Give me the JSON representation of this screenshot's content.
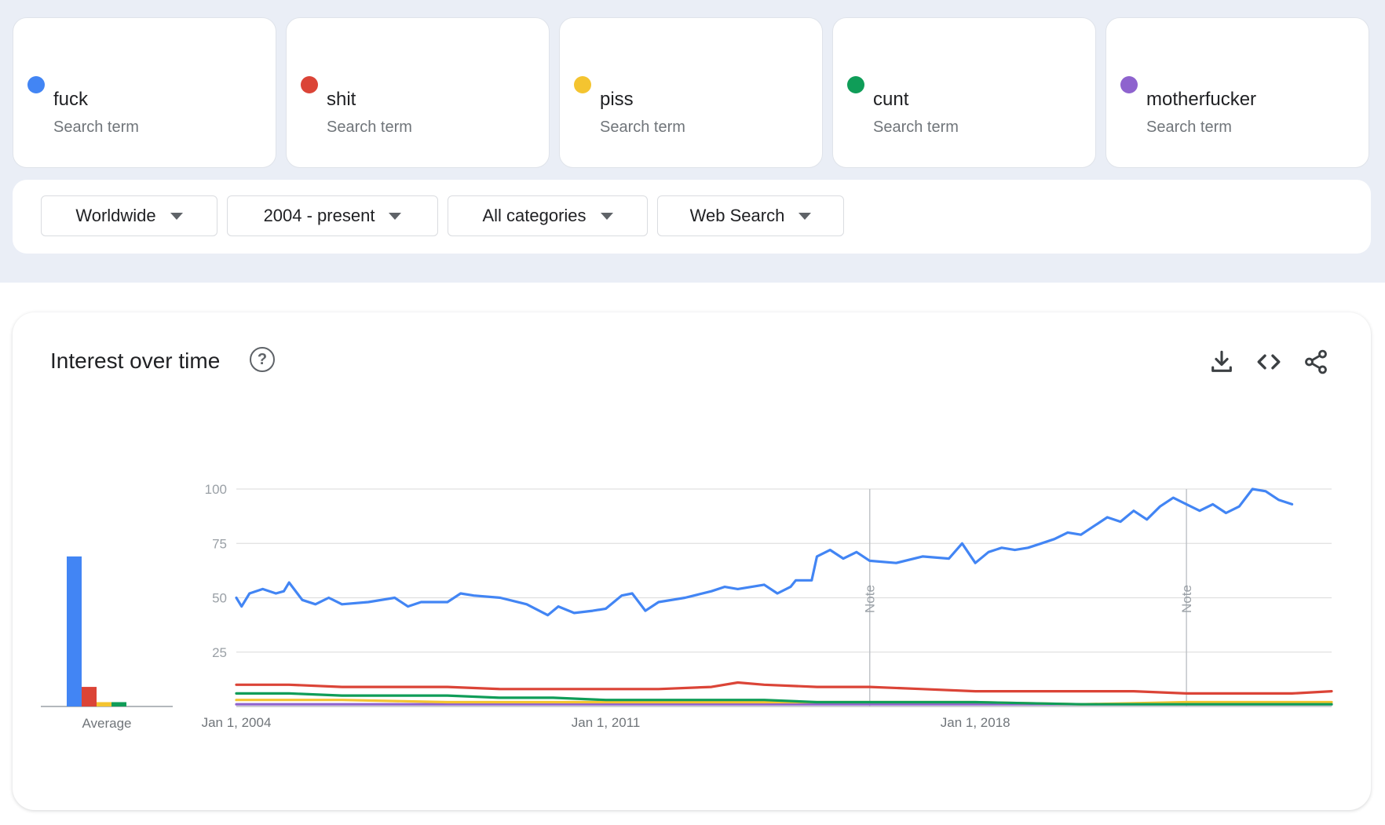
{
  "terms": [
    {
      "name": "fuck",
      "subtitle": "Search term",
      "color": "#4285f4"
    },
    {
      "name": "shit",
      "subtitle": "Search term",
      "color": "#db4437"
    },
    {
      "name": "piss",
      "subtitle": "Search term",
      "color": "#f4c430"
    },
    {
      "name": "cunt",
      "subtitle": "Search term",
      "color": "#0f9d58"
    },
    {
      "name": "motherfucker",
      "subtitle": "Search term",
      "color": "#8e63ce"
    }
  ],
  "filters": {
    "region": "Worldwide",
    "time_range": "2004 - present",
    "category": "All categories",
    "search_type": "Web Search"
  },
  "panel": {
    "title": "Interest over time",
    "help_icon": "question-circle-icon",
    "download_icon": "download-icon",
    "embed_icon": "code-embed-icon",
    "share_icon": "share-icon"
  },
  "chart_data": {
    "type": "line",
    "y_ticks": [
      "100",
      "75",
      "50",
      "25"
    ],
    "ylim": [
      0,
      100
    ],
    "x_tick_labels": [
      "Jan 1, 2004",
      "Jan 1, 2011",
      "Jan 1, 2018"
    ],
    "x_range": [
      2004.0,
      2024.75
    ],
    "grid": true,
    "notes": [
      {
        "label": "Note",
        "x": 2016.0
      },
      {
        "label": "Note",
        "x": 2022.0
      }
    ],
    "series": [
      {
        "color": "#4285f4",
        "points": [
          [
            2004.0,
            50
          ],
          [
            2004.1,
            46
          ],
          [
            2004.25,
            52
          ],
          [
            2004.5,
            54
          ],
          [
            2004.75,
            52
          ],
          [
            2004.9,
            53
          ],
          [
            2005.0,
            57
          ],
          [
            2005.25,
            49
          ],
          [
            2005.5,
            47
          ],
          [
            2005.75,
            50
          ],
          [
            2006.0,
            47
          ],
          [
            2006.5,
            48
          ],
          [
            2007.0,
            50
          ],
          [
            2007.25,
            46
          ],
          [
            2007.5,
            48
          ],
          [
            2008.0,
            48
          ],
          [
            2008.25,
            52
          ],
          [
            2008.5,
            51
          ],
          [
            2009.0,
            50
          ],
          [
            2009.5,
            47
          ],
          [
            2009.9,
            42
          ],
          [
            2010.1,
            46
          ],
          [
            2010.4,
            43
          ],
          [
            2010.75,
            44
          ],
          [
            2011.0,
            45
          ],
          [
            2011.3,
            51
          ],
          [
            2011.5,
            52
          ],
          [
            2011.75,
            44
          ],
          [
            2012.0,
            48
          ],
          [
            2012.5,
            50
          ],
          [
            2013.0,
            53
          ],
          [
            2013.25,
            55
          ],
          [
            2013.5,
            54
          ],
          [
            2014.0,
            56
          ],
          [
            2014.25,
            52
          ],
          [
            2014.5,
            55
          ],
          [
            2014.6,
            58
          ],
          [
            2014.9,
            58
          ],
          [
            2015.0,
            69
          ],
          [
            2015.25,
            72
          ],
          [
            2015.5,
            68
          ],
          [
            2015.75,
            71
          ],
          [
            2016.0,
            67
          ],
          [
            2016.5,
            66
          ],
          [
            2017.0,
            69
          ],
          [
            2017.5,
            68
          ],
          [
            2017.75,
            75
          ],
          [
            2018.0,
            66
          ],
          [
            2018.25,
            71
          ],
          [
            2018.5,
            73
          ],
          [
            2018.75,
            72
          ],
          [
            2019.0,
            73
          ],
          [
            2019.25,
            75
          ],
          [
            2019.5,
            77
          ],
          [
            2019.75,
            80
          ],
          [
            2020.0,
            79
          ],
          [
            2020.25,
            83
          ],
          [
            2020.5,
            87
          ],
          [
            2020.75,
            85
          ],
          [
            2021.0,
            90
          ],
          [
            2021.25,
            86
          ],
          [
            2021.5,
            92
          ],
          [
            2021.75,
            96
          ],
          [
            2022.0,
            93
          ],
          [
            2022.25,
            90
          ],
          [
            2022.5,
            93
          ],
          [
            2022.75,
            89
          ],
          [
            2023.0,
            92
          ],
          [
            2023.25,
            100
          ],
          [
            2023.5,
            99
          ],
          [
            2023.75,
            95
          ],
          [
            2024.0,
            93
          ]
        ]
      },
      {
        "color": "#db4437",
        "points": [
          [
            2004,
            10
          ],
          [
            2005,
            10
          ],
          [
            2006,
            9
          ],
          [
            2007,
            9
          ],
          [
            2008,
            9
          ],
          [
            2009,
            8
          ],
          [
            2010,
            8
          ],
          [
            2011,
            8
          ],
          [
            2012,
            8
          ],
          [
            2013,
            9
          ],
          [
            2013.5,
            11
          ],
          [
            2014,
            10
          ],
          [
            2015,
            9
          ],
          [
            2016,
            9
          ],
          [
            2017,
            8
          ],
          [
            2018,
            7
          ],
          [
            2019,
            7
          ],
          [
            2020,
            7
          ],
          [
            2021,
            7
          ],
          [
            2022,
            6
          ],
          [
            2023,
            6
          ],
          [
            2024,
            6
          ],
          [
            2024.75,
            7
          ]
        ]
      },
      {
        "color": "#f4c430",
        "points": [
          [
            2004,
            3
          ],
          [
            2006,
            3
          ],
          [
            2008,
            2
          ],
          [
            2010,
            2
          ],
          [
            2012,
            2
          ],
          [
            2014,
            2
          ],
          [
            2016,
            2
          ],
          [
            2018,
            2
          ],
          [
            2020,
            1
          ],
          [
            2022,
            2
          ],
          [
            2024.75,
            2
          ]
        ]
      },
      {
        "color": "#0f9d58",
        "points": [
          [
            2004,
            6
          ],
          [
            2005,
            6
          ],
          [
            2006,
            5
          ],
          [
            2007,
            5
          ],
          [
            2008,
            5
          ],
          [
            2009,
            4
          ],
          [
            2010,
            4
          ],
          [
            2011,
            3
          ],
          [
            2012,
            3
          ],
          [
            2013,
            3
          ],
          [
            2014,
            3
          ],
          [
            2015,
            2
          ],
          [
            2016,
            2
          ],
          [
            2018,
            2
          ],
          [
            2020,
            1
          ],
          [
            2022,
            1
          ],
          [
            2024.75,
            1
          ]
        ]
      },
      {
        "color": "#8e63ce",
        "points": [
          [
            2004,
            1
          ],
          [
            2008,
            1
          ],
          [
            2012,
            1
          ],
          [
            2016,
            1
          ],
          [
            2020,
            1
          ],
          [
            2024.75,
            1
          ]
        ]
      }
    ],
    "average": {
      "label": "Average",
      "values": [
        69,
        9,
        2,
        2,
        0
      ]
    }
  }
}
